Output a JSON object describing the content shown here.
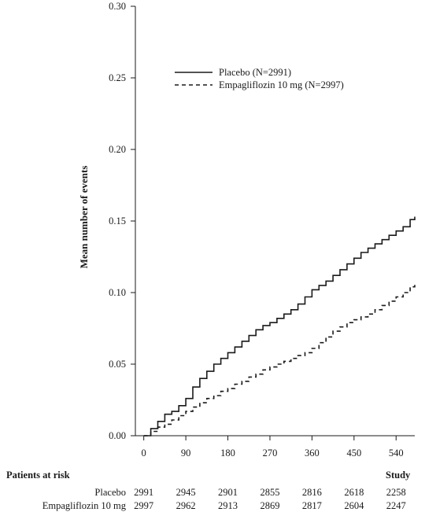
{
  "chart_data": {
    "type": "line",
    "ylabel": "Mean number of events",
    "xlabel": "Study",
    "ylim": [
      0,
      0.3
    ],
    "xlim": [
      -18,
      580
    ],
    "y_ticks": [
      0.0,
      0.05,
      0.1,
      0.15,
      0.2,
      0.25,
      0.3
    ],
    "y_tick_labels": [
      "0.00",
      "0.05",
      "0.10",
      "0.15",
      "0.20",
      "0.25",
      "0.30"
    ],
    "x_ticks": [
      0,
      90,
      180,
      270,
      360,
      450,
      540
    ],
    "x_tick_labels": [
      "0",
      "90",
      "180",
      "270",
      "360",
      "450",
      "540"
    ],
    "grid": false,
    "legend_position": "top-right",
    "series": [
      {
        "name": "Placebo (N=2991)",
        "style": "solid",
        "color": "#1a1a1a",
        "x": [
          0,
          15,
          30,
          45,
          60,
          75,
          90,
          105,
          120,
          135,
          150,
          165,
          180,
          195,
          210,
          225,
          240,
          255,
          270,
          285,
          300,
          315,
          330,
          345,
          360,
          375,
          390,
          405,
          420,
          435,
          450,
          465,
          480,
          495,
          510,
          525,
          540,
          555,
          570,
          580
        ],
        "y": [
          0,
          0.005,
          0.01,
          0.015,
          0.017,
          0.021,
          0.026,
          0.034,
          0.04,
          0.045,
          0.05,
          0.054,
          0.058,
          0.062,
          0.066,
          0.07,
          0.074,
          0.077,
          0.079,
          0.082,
          0.085,
          0.088,
          0.092,
          0.097,
          0.102,
          0.105,
          0.108,
          0.112,
          0.116,
          0.12,
          0.124,
          0.128,
          0.131,
          0.134,
          0.137,
          0.14,
          0.143,
          0.146,
          0.151,
          0.153
        ]
      },
      {
        "name": "Empagliflozin 10 mg (N=2997)",
        "style": "dashed",
        "color": "#1a1a1a",
        "x": [
          0,
          15,
          30,
          45,
          60,
          75,
          90,
          105,
          120,
          135,
          150,
          165,
          180,
          195,
          210,
          225,
          240,
          255,
          270,
          285,
          300,
          315,
          330,
          345,
          360,
          375,
          390,
          405,
          420,
          435,
          450,
          465,
          480,
          495,
          510,
          525,
          540,
          555,
          570,
          580
        ],
        "y": [
          0,
          0.003,
          0.006,
          0.008,
          0.011,
          0.014,
          0.017,
          0.02,
          0.023,
          0.026,
          0.028,
          0.031,
          0.033,
          0.036,
          0.038,
          0.041,
          0.043,
          0.046,
          0.048,
          0.05,
          0.052,
          0.054,
          0.056,
          0.058,
          0.061,
          0.065,
          0.069,
          0.073,
          0.076,
          0.079,
          0.081,
          0.083,
          0.085,
          0.088,
          0.091,
          0.094,
          0.097,
          0.1,
          0.104,
          0.106
        ]
      }
    ],
    "risk_table": {
      "title": "Patients at risk",
      "time_label": "Study",
      "rows": [
        {
          "label": "Placebo",
          "values": [
            "2991",
            "2945",
            "2901",
            "2855",
            "2816",
            "2618",
            "2258"
          ]
        },
        {
          "label": "Empagliflozin 10 mg",
          "values": [
            "2997",
            "2962",
            "2913",
            "2869",
            "2817",
            "2604",
            "2247"
          ]
        }
      ]
    }
  }
}
